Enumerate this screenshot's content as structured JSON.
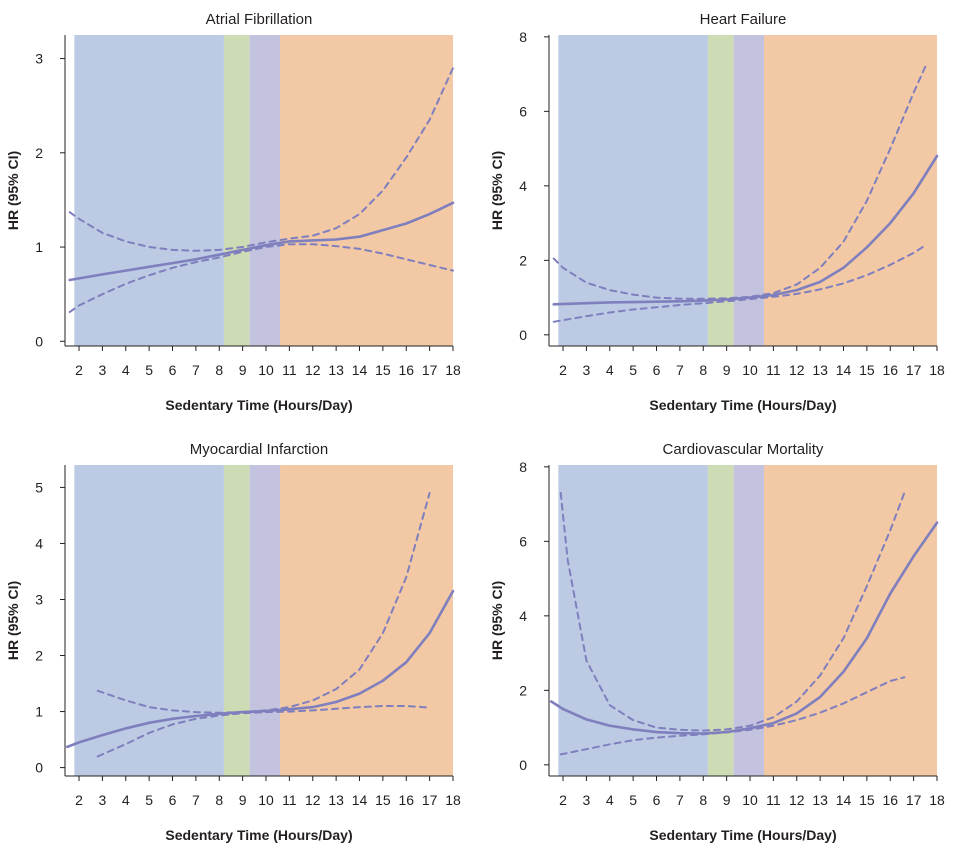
{
  "colors": {
    "zone1": "#bccbe3",
    "zone2": "#cddcb4",
    "zone3": "#c4c3df",
    "zone4": "#f2c8a5",
    "line": "#7f7fbe",
    "axis": "#231f20"
  },
  "zone_breaks": [
    1.8,
    8.2,
    9.3,
    10.6,
    18.0
  ],
  "chart_data": [
    {
      "type": "line",
      "title": "Atrial Fibrillation",
      "xlabel": "Sedentary Time (Hours/Day)",
      "ylabel": "HR (95% CI)",
      "xlim": [
        1.4,
        18.0
      ],
      "ylim": [
        -0.05,
        3.25
      ],
      "xticks": [
        2,
        3,
        4,
        5,
        6,
        7,
        8,
        9,
        10,
        11,
        12,
        13,
        14,
        15,
        16,
        17,
        18
      ],
      "xtick_labels": [
        "2",
        "3",
        "4",
        "5",
        "6",
        "7",
        "8",
        "9",
        "10",
        "11",
        "12",
        "13",
        "14",
        "15",
        "16",
        "17",
        "18"
      ],
      "yticks": [
        0,
        1,
        2,
        3
      ],
      "ytick_labels": [
        "0",
        "1",
        "2",
        "3"
      ],
      "series": [
        {
          "name": "HR",
          "style": "solid",
          "x": [
            1.6,
            3,
            4,
            5,
            6,
            7,
            8,
            9,
            10,
            11,
            12,
            13,
            14,
            15,
            16,
            17,
            18
          ],
          "y": [
            0.65,
            0.71,
            0.75,
            0.79,
            0.83,
            0.87,
            0.92,
            0.97,
            1.02,
            1.06,
            1.07,
            1.08,
            1.11,
            1.18,
            1.25,
            1.35,
            1.47
          ]
        },
        {
          "name": "Upper 95% CI",
          "style": "dashed",
          "x": [
            1.6,
            2,
            3,
            4,
            5,
            6,
            7,
            8,
            9,
            10,
            11,
            12,
            13,
            14,
            15,
            16,
            17,
            18
          ],
          "y": [
            1.37,
            1.3,
            1.15,
            1.06,
            1.0,
            0.97,
            0.96,
            0.97,
            1.0,
            1.05,
            1.09,
            1.12,
            1.2,
            1.35,
            1.6,
            1.95,
            2.35,
            2.9
          ]
        },
        {
          "name": "Lower 95% CI",
          "style": "dashed",
          "x": [
            1.6,
            2,
            3,
            4,
            5,
            6,
            7,
            8,
            9,
            10,
            11,
            12,
            13,
            14,
            15,
            16,
            17,
            18
          ],
          "y": [
            0.31,
            0.38,
            0.5,
            0.61,
            0.7,
            0.78,
            0.84,
            0.89,
            0.95,
            1.0,
            1.03,
            1.03,
            1.01,
            0.98,
            0.93,
            0.87,
            0.81,
            0.75
          ]
        }
      ]
    },
    {
      "type": "line",
      "title": "Heart Failure",
      "xlabel": "Sedentary Time (Hours/Day)",
      "ylabel": "HR (95% CI)",
      "xlim": [
        1.4,
        18.0
      ],
      "ylim": [
        -0.3,
        8.05
      ],
      "xticks": [
        2,
        3,
        4,
        5,
        6,
        7,
        8,
        9,
        10,
        11,
        12,
        13,
        14,
        15,
        16,
        17,
        18
      ],
      "xtick_labels": [
        "2",
        "3",
        "4",
        "5",
        "6",
        "7",
        "8",
        "9",
        "10",
        "11",
        "12",
        "13",
        "14",
        "15",
        "16",
        "17",
        "18"
      ],
      "yticks": [
        0,
        2,
        4,
        6,
        8
      ],
      "ytick_labels": [
        "0",
        "2",
        "4",
        "6",
        "8"
      ],
      "series": [
        {
          "name": "HR",
          "style": "solid",
          "x": [
            1.6,
            3,
            4,
            5,
            6,
            7,
            8,
            9,
            10,
            11,
            12,
            13,
            14,
            15,
            16,
            17,
            18
          ],
          "y": [
            0.82,
            0.85,
            0.87,
            0.88,
            0.89,
            0.9,
            0.92,
            0.95,
            1.0,
            1.07,
            1.2,
            1.42,
            1.8,
            2.35,
            3.0,
            3.8,
            4.8
          ]
        },
        {
          "name": "Upper 95% CI",
          "style": "dashed",
          "x": [
            1.6,
            2,
            3,
            4,
            5,
            6,
            7,
            8,
            9,
            10,
            11,
            12,
            13,
            14,
            15,
            16,
            17,
            17.5
          ],
          "y": [
            2.05,
            1.8,
            1.4,
            1.2,
            1.08,
            1.0,
            0.97,
            0.97,
            0.98,
            1.02,
            1.12,
            1.35,
            1.8,
            2.5,
            3.6,
            5.0,
            6.5,
            7.2
          ]
        },
        {
          "name": "Lower 95% CI",
          "style": "dashed",
          "x": [
            1.6,
            3,
            4,
            5,
            6,
            7,
            8,
            9,
            10,
            11,
            12,
            13,
            14,
            15,
            16,
            17,
            17.5
          ],
          "y": [
            0.35,
            0.5,
            0.6,
            0.68,
            0.74,
            0.8,
            0.85,
            0.9,
            0.96,
            1.02,
            1.1,
            1.22,
            1.38,
            1.6,
            1.88,
            2.2,
            2.4
          ]
        }
      ]
    },
    {
      "type": "line",
      "title": "Myocardial Infarction",
      "xlabel": "Sedentary Time (Hours/Day)",
      "ylabel": "HR (95% CI)",
      "xlim": [
        1.4,
        18.0
      ],
      "ylim": [
        -0.15,
        5.4
      ],
      "xticks": [
        2,
        3,
        4,
        5,
        6,
        7,
        8,
        9,
        10,
        11,
        12,
        13,
        14,
        15,
        16,
        17,
        18
      ],
      "xtick_labels": [
        "2",
        "3",
        "4",
        "5",
        "6",
        "7",
        "8",
        "9",
        "10",
        "11",
        "12",
        "13",
        "14",
        "15",
        "16",
        "17",
        "18"
      ],
      "yticks": [
        0,
        1,
        2,
        3,
        4,
        5
      ],
      "ytick_labels": [
        "0",
        "1",
        "2",
        "3",
        "4",
        "5"
      ],
      "series": [
        {
          "name": "HR",
          "style": "solid",
          "x": [
            1.5,
            2,
            3,
            4,
            5,
            6,
            7,
            8,
            9,
            10,
            11,
            12,
            13,
            14,
            15,
            16,
            17,
            18
          ],
          "y": [
            0.37,
            0.45,
            0.58,
            0.7,
            0.8,
            0.87,
            0.92,
            0.96,
            0.99,
            1.01,
            1.04,
            1.08,
            1.17,
            1.32,
            1.55,
            1.88,
            2.4,
            3.15
          ]
        },
        {
          "name": "Upper 95% CI",
          "style": "dashed",
          "x": [
            2.8,
            4,
            5,
            6,
            7,
            8,
            9,
            10,
            11,
            12,
            13,
            14,
            15,
            16,
            17
          ],
          "y": [
            1.37,
            1.2,
            1.08,
            1.02,
            0.99,
            0.98,
            0.99,
            1.02,
            1.08,
            1.2,
            1.4,
            1.75,
            2.4,
            3.4,
            4.9
          ]
        },
        {
          "name": "Lower 95% CI",
          "style": "dashed",
          "x": [
            2.8,
            4,
            5,
            6,
            7,
            8,
            9,
            10,
            11,
            12,
            13,
            14,
            15,
            16,
            17
          ],
          "y": [
            0.2,
            0.42,
            0.62,
            0.77,
            0.87,
            0.93,
            0.97,
            0.99,
            1.0,
            1.02,
            1.05,
            1.08,
            1.1,
            1.1,
            1.07
          ]
        }
      ]
    },
    {
      "type": "line",
      "title": "Cardiovascular Mortality",
      "xlabel": "Sedentary Time (Hours/Day)",
      "ylabel": "HR (95% CI)",
      "xlim": [
        1.4,
        18.0
      ],
      "ylim": [
        -0.3,
        8.05
      ],
      "xticks": [
        2,
        3,
        4,
        5,
        6,
        7,
        8,
        9,
        10,
        11,
        12,
        13,
        14,
        15,
        16,
        17,
        18
      ],
      "xtick_labels": [
        "2",
        "3",
        "4",
        "5",
        "6",
        "7",
        "8",
        "9",
        "10",
        "11",
        "12",
        "13",
        "14",
        "15",
        "16",
        "17",
        "18"
      ],
      "yticks": [
        0,
        2,
        4,
        6,
        8
      ],
      "ytick_labels": [
        "0",
        "2",
        "4",
        "6",
        "8"
      ],
      "series": [
        {
          "name": "HR",
          "style": "solid",
          "x": [
            1.5,
            2,
            3,
            4,
            5,
            6,
            7,
            8,
            9,
            10,
            11,
            12,
            13,
            14,
            15,
            16,
            17,
            18
          ],
          "y": [
            1.7,
            1.5,
            1.22,
            1.05,
            0.95,
            0.88,
            0.85,
            0.84,
            0.88,
            0.98,
            1.12,
            1.38,
            1.82,
            2.5,
            3.4,
            4.6,
            5.6,
            6.5
          ]
        },
        {
          "name": "Upper 95% CI",
          "style": "dashed",
          "x": [
            1.9,
            2.2,
            3,
            4,
            5,
            6,
            7,
            8,
            9,
            10,
            11,
            12,
            13,
            14,
            15,
            16,
            16.6
          ],
          "y": [
            7.3,
            5.5,
            2.8,
            1.6,
            1.2,
            1.0,
            0.94,
            0.92,
            0.95,
            1.05,
            1.28,
            1.7,
            2.4,
            3.4,
            4.8,
            6.3,
            7.3
          ]
        },
        {
          "name": "Lower 95% CI",
          "style": "dashed",
          "x": [
            1.9,
            3,
            4,
            5,
            6,
            7,
            8,
            9,
            10,
            11,
            12,
            13,
            14,
            15,
            16,
            16.6
          ],
          "y": [
            0.28,
            0.42,
            0.55,
            0.66,
            0.73,
            0.78,
            0.82,
            0.87,
            0.94,
            1.05,
            1.2,
            1.4,
            1.65,
            1.95,
            2.25,
            2.35
          ]
        }
      ]
    }
  ]
}
